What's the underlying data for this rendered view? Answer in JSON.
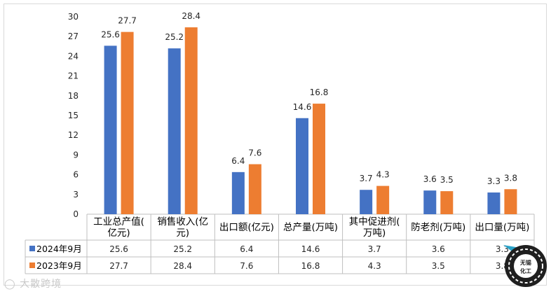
{
  "chart_data": {
    "type": "bar",
    "title": "",
    "xlabel": "",
    "ylabel": "",
    "ylim": [
      0,
      30
    ],
    "yticks": [
      "0",
      "3",
      "6",
      "9",
      "12",
      "15",
      "18",
      "21",
      "24",
      "27",
      "30"
    ],
    "grid": false,
    "legend": "data table rows below chart",
    "categories": [
      [
        "工业总产值(",
        "亿元)"
      ],
      [
        "销售收入(亿",
        "元)"
      ],
      [
        "出口额(亿元)"
      ],
      [
        "总产量(万吨)"
      ],
      [
        "其中促进剂(",
        "万吨)"
      ],
      [
        "防老剂(万吨)"
      ],
      [
        "出口量(万吨)"
      ]
    ],
    "series": [
      {
        "name": "2024年9月",
        "color": "#4472c4",
        "values": [
          25.6,
          25.2,
          6.4,
          14.6,
          3.7,
          3.6,
          3.3
        ],
        "labels": [
          "25.6",
          "25.2",
          "6.4",
          "14.6",
          "3.7",
          "3.6",
          "3.3"
        ]
      },
      {
        "name": "2023年9月",
        "color": "#ed7d31",
        "values": [
          27.7,
          28.4,
          7.6,
          16.8,
          4.3,
          3.5,
          3.8
        ],
        "labels": [
          "27.7",
          "28.4",
          "7.6",
          "16.8",
          "4.3",
          "3.5",
          "3.8"
        ]
      }
    ]
  },
  "watermark": "大散跨境",
  "logo_text": [
    "无锡",
    "化工"
  ]
}
